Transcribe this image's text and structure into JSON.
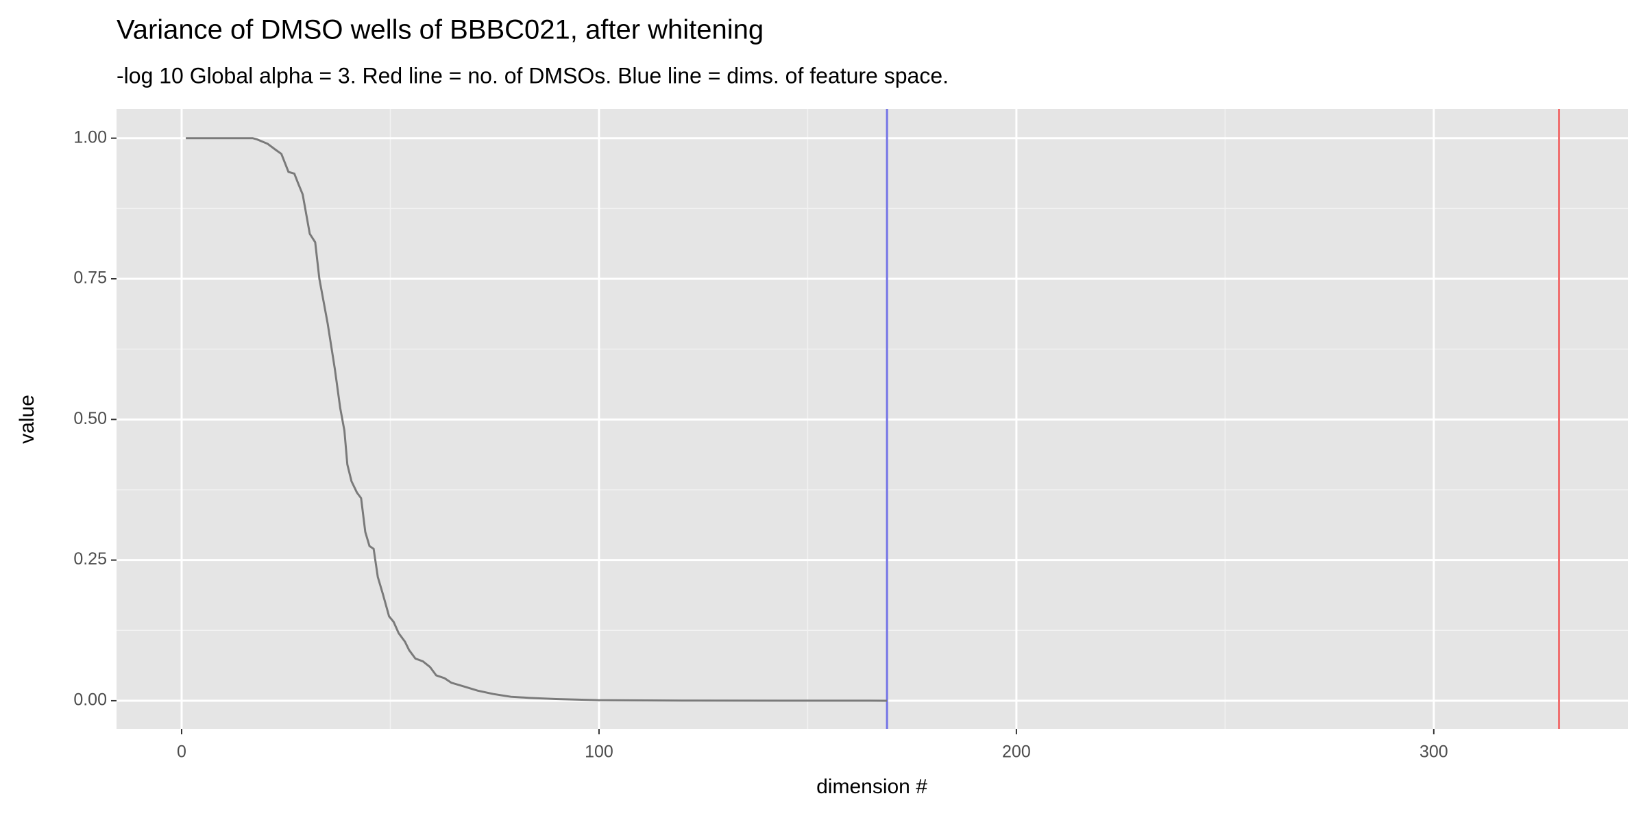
{
  "chart_data": {
    "type": "line",
    "title": "Variance of DMSO wells of BBBC021, after whitening",
    "subtitle": "-log 10 Global alpha = 3. Red line = no. of DMSOs. Blue line = dims. of feature space.",
    "x_label": "dimension #",
    "y_label": "value",
    "xlim": [
      -15.6,
      346.5
    ],
    "ylim": [
      -0.05,
      1.052
    ],
    "xticks": [
      0,
      100,
      200,
      300
    ],
    "x_minor_grid": [
      50,
      150,
      250
    ],
    "yticks": [
      {
        "value": 0,
        "label": "0.00"
      },
      {
        "value": 0.25,
        "label": "0.25"
      },
      {
        "value": 0.5,
        "label": "0.50"
      },
      {
        "value": 0.75,
        "label": "0.75"
      },
      {
        "value": 1,
        "label": "1.00"
      }
    ],
    "y_minor_grid": [
      0.125,
      0.375,
      0.625,
      0.875
    ],
    "grid": true,
    "series": [
      {
        "color": "#7a7a7a",
        "x": [
          1,
          17,
          18,
          20.6,
          22.4,
          23.9,
          25.6,
          27,
          27.9,
          29,
          30.7,
          32,
          33,
          35,
          36.7,
          38,
          39,
          39.7,
          40.7,
          42,
          43,
          44,
          45,
          46,
          47,
          48.2,
          49.7,
          50.8,
          52,
          53.5,
          54.5,
          56,
          57.8,
          59.5,
          61,
          63,
          64.6,
          67.8,
          70.9,
          74.6,
          78.9,
          83.4,
          89.7,
          99.7,
          120,
          169
        ],
        "values": [
          1,
          1,
          0.998,
          0.99,
          0.98,
          0.972,
          0.94,
          0.937,
          0.92,
          0.9,
          0.83,
          0.815,
          0.75,
          0.67,
          0.59,
          0.52,
          0.48,
          0.42,
          0.39,
          0.37,
          0.36,
          0.3,
          0.275,
          0.27,
          0.22,
          0.19,
          0.15,
          0.14,
          0.12,
          0.105,
          0.09,
          0.075,
          0.07,
          0.06,
          0.045,
          0.04,
          0.032,
          0.025,
          0.018,
          0.012,
          0.007,
          0.005,
          0.003,
          0.001,
          0.0003,
          0
        ]
      }
    ],
    "vlines": [
      {
        "x": 169,
        "color": "#7474e6"
      },
      {
        "x": 330,
        "color": "#f07070"
      }
    ]
  }
}
